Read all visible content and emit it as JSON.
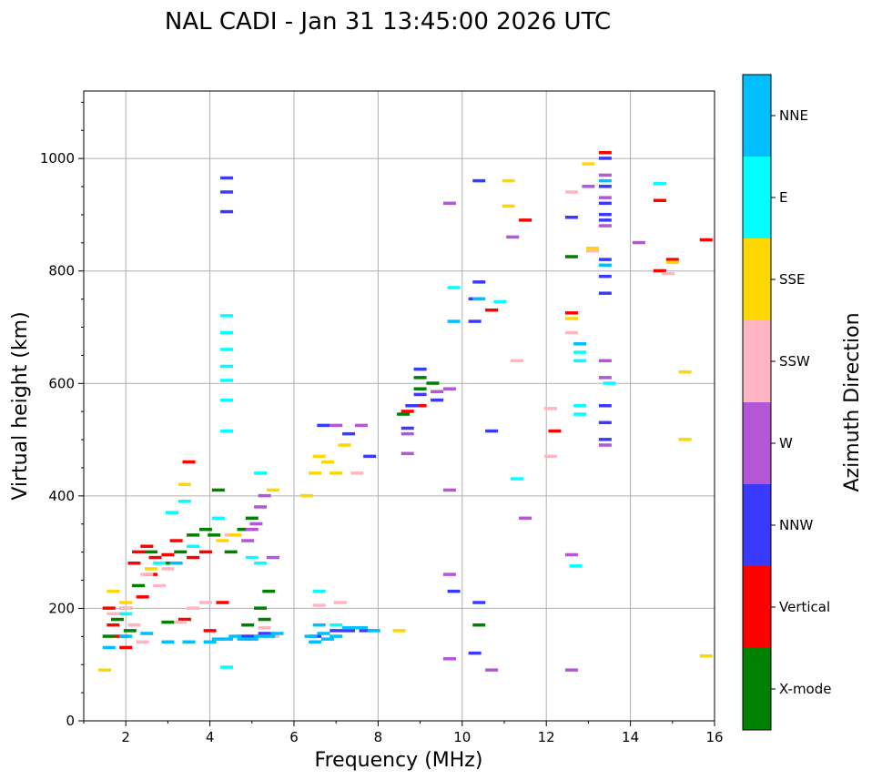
{
  "chart_data": {
    "type": "scatter",
    "title": "NAL CADI - Jan 31 13:45:00 2026 UTC",
    "xlabel": "Frequency (MHz)",
    "ylabel": "Virtual height (km)",
    "xlim": [
      1,
      16
    ],
    "ylim": [
      0,
      1120
    ],
    "xticks": [
      2,
      4,
      6,
      8,
      10,
      12,
      14,
      16
    ],
    "yticks": [
      0,
      200,
      400,
      600,
      800,
      1000
    ],
    "grid": true,
    "colorbar": {
      "label": "Azimuth Direction",
      "categories": [
        {
          "name": "X-mode",
          "color": "#008000"
        },
        {
          "name": "Vertical",
          "color": "#ff0000"
        },
        {
          "name": "NNW",
          "color": "#3a3aff"
        },
        {
          "name": "W",
          "color": "#b456d6"
        },
        {
          "name": "SSW",
          "color": "#ffb6c1"
        },
        {
          "name": "SSE",
          "color": "#ffd700"
        },
        {
          "name": "E",
          "color": "#00ffff"
        },
        {
          "name": "NNE",
          "color": "#00bfff"
        }
      ]
    },
    "series": [
      {
        "name": "X-mode",
        "points": [
          [
            1.6,
            150
          ],
          [
            1.8,
            180
          ],
          [
            2.0,
            200
          ],
          [
            2.3,
            240
          ],
          [
            2.6,
            300
          ],
          [
            2.9,
            280
          ],
          [
            3.3,
            300
          ],
          [
            3.6,
            330
          ],
          [
            3.9,
            340
          ],
          [
            4.1,
            330
          ],
          [
            4.2,
            410
          ],
          [
            4.5,
            300
          ],
          [
            4.8,
            340
          ],
          [
            5.0,
            360
          ],
          [
            5.2,
            200
          ],
          [
            5.4,
            230
          ],
          [
            5.3,
            180
          ],
          [
            4.9,
            170
          ],
          [
            8.6,
            545
          ],
          [
            9.0,
            590
          ],
          [
            9.0,
            610
          ],
          [
            9.3,
            600
          ],
          [
            10.4,
            170
          ],
          [
            12.6,
            825
          ],
          [
            2.1,
            160
          ],
          [
            3.0,
            175
          ]
        ]
      },
      {
        "name": "Vertical",
        "points": [
          [
            1.6,
            200
          ],
          [
            1.7,
            170
          ],
          [
            1.9,
            150
          ],
          [
            2.0,
            130
          ],
          [
            2.2,
            280
          ],
          [
            2.3,
            300
          ],
          [
            2.5,
            310
          ],
          [
            2.7,
            290
          ],
          [
            3.0,
            295
          ],
          [
            3.2,
            320
          ],
          [
            3.5,
            460
          ],
          [
            3.6,
            290
          ],
          [
            3.9,
            300
          ],
          [
            2.6,
            260
          ],
          [
            3.4,
            180
          ],
          [
            4.0,
            160
          ],
          [
            4.3,
            210
          ],
          [
            8.7,
            550
          ],
          [
            9.0,
            560
          ],
          [
            10.7,
            730
          ],
          [
            11.5,
            890
          ],
          [
            12.2,
            515
          ],
          [
            12.6,
            725
          ],
          [
            13.4,
            1010
          ],
          [
            14.7,
            925
          ],
          [
            14.7,
            800
          ],
          [
            15.0,
            820
          ],
          [
            15.8,
            855
          ],
          [
            2.4,
            220
          ]
        ]
      },
      {
        "name": "NNW",
        "points": [
          [
            4.4,
            940
          ],
          [
            4.4,
            965
          ],
          [
            4.4,
            905
          ],
          [
            4.8,
            150
          ],
          [
            5.0,
            150
          ],
          [
            5.3,
            155
          ],
          [
            6.5,
            150
          ],
          [
            7.0,
            160
          ],
          [
            7.3,
            160
          ],
          [
            7.7,
            160
          ],
          [
            8.7,
            520
          ],
          [
            8.8,
            560
          ],
          [
            9.0,
            580
          ],
          [
            9.0,
            625
          ],
          [
            9.4,
            570
          ],
          [
            9.8,
            230
          ],
          [
            10.3,
            710
          ],
          [
            10.3,
            750
          ],
          [
            10.4,
            960
          ],
          [
            10.4,
            780
          ],
          [
            10.4,
            210
          ],
          [
            10.3,
            120
          ],
          [
            10.7,
            515
          ],
          [
            12.6,
            895
          ],
          [
            13.4,
            500
          ],
          [
            13.4,
            530
          ],
          [
            13.4,
            560
          ],
          [
            13.4,
            760
          ],
          [
            13.4,
            790
          ],
          [
            13.4,
            820
          ],
          [
            13.4,
            900
          ],
          [
            13.4,
            920
          ],
          [
            13.4,
            950
          ],
          [
            13.4,
            1000
          ],
          [
            13.4,
            890
          ],
          [
            7.8,
            470
          ],
          [
            6.7,
            525
          ],
          [
            7.3,
            510
          ]
        ]
      },
      {
        "name": "W",
        "points": [
          [
            5.1,
            350
          ],
          [
            5.2,
            380
          ],
          [
            5.3,
            400
          ],
          [
            5.0,
            340
          ],
          [
            4.9,
            320
          ],
          [
            5.5,
            290
          ],
          [
            8.7,
            475
          ],
          [
            8.7,
            510
          ],
          [
            9.4,
            585
          ],
          [
            9.7,
            590
          ],
          [
            9.7,
            410
          ],
          [
            9.7,
            920
          ],
          [
            9.7,
            260
          ],
          [
            9.7,
            110
          ],
          [
            10.7,
            90
          ],
          [
            11.2,
            860
          ],
          [
            11.5,
            360
          ],
          [
            12.6,
            295
          ],
          [
            12.6,
            90
          ],
          [
            13.0,
            950
          ],
          [
            13.4,
            490
          ],
          [
            13.4,
            610
          ],
          [
            13.4,
            640
          ],
          [
            13.4,
            880
          ],
          [
            13.4,
            930
          ],
          [
            13.4,
            970
          ],
          [
            14.2,
            850
          ],
          [
            7.0,
            525
          ],
          [
            7.6,
            525
          ]
        ]
      },
      {
        "name": "SSW",
        "points": [
          [
            1.7,
            190
          ],
          [
            2.0,
            200
          ],
          [
            2.2,
            170
          ],
          [
            2.5,
            260
          ],
          [
            2.8,
            240
          ],
          [
            3.0,
            270
          ],
          [
            3.3,
            175
          ],
          [
            3.6,
            200
          ],
          [
            4.5,
            330
          ],
          [
            5.3,
            165
          ],
          [
            5.5,
            150
          ],
          [
            6.6,
            205
          ],
          [
            7.1,
            210
          ],
          [
            7.5,
            440
          ],
          [
            11.3,
            640
          ],
          [
            12.1,
            555
          ],
          [
            12.1,
            470
          ],
          [
            12.6,
            940
          ],
          [
            12.6,
            690
          ],
          [
            13.1,
            835
          ],
          [
            14.9,
            795
          ],
          [
            2.4,
            140
          ],
          [
            3.9,
            210
          ]
        ]
      },
      {
        "name": "SSE",
        "points": [
          [
            1.5,
            90
          ],
          [
            1.7,
            230
          ],
          [
            2.0,
            210
          ],
          [
            3.2,
            280
          ],
          [
            3.4,
            420
          ],
          [
            4.3,
            320
          ],
          [
            4.6,
            330
          ],
          [
            5.5,
            410
          ],
          [
            6.3,
            400
          ],
          [
            6.6,
            470
          ],
          [
            6.5,
            440
          ],
          [
            6.8,
            460
          ],
          [
            7.0,
            440
          ],
          [
            7.2,
            490
          ],
          [
            8.5,
            160
          ],
          [
            11.1,
            960
          ],
          [
            11.1,
            915
          ],
          [
            12.6,
            715
          ],
          [
            13.0,
            990
          ],
          [
            13.1,
            840
          ],
          [
            15.0,
            815
          ],
          [
            15.3,
            620
          ],
          [
            15.3,
            500
          ],
          [
            15.8,
            115
          ],
          [
            2.6,
            270
          ]
        ]
      },
      {
        "name": "E",
        "points": [
          [
            2.0,
            190
          ],
          [
            2.8,
            280
          ],
          [
            3.1,
            370
          ],
          [
            3.4,
            390
          ],
          [
            3.6,
            310
          ],
          [
            4.4,
            720
          ],
          [
            4.4,
            690
          ],
          [
            4.4,
            660
          ],
          [
            4.4,
            630
          ],
          [
            4.4,
            605
          ],
          [
            4.4,
            570
          ],
          [
            4.4,
            515
          ],
          [
            4.4,
            95
          ],
          [
            5.0,
            290
          ],
          [
            5.2,
            280
          ],
          [
            5.2,
            440
          ],
          [
            6.6,
            230
          ],
          [
            7.0,
            170
          ],
          [
            9.8,
            770
          ],
          [
            10.9,
            745
          ],
          [
            11.3,
            430
          ],
          [
            12.7,
            275
          ],
          [
            12.8,
            640
          ],
          [
            12.8,
            655
          ],
          [
            12.8,
            545
          ],
          [
            12.8,
            560
          ],
          [
            14.7,
            955
          ],
          [
            13.5,
            600
          ],
          [
            4.2,
            360
          ]
        ]
      },
      {
        "name": "NNE",
        "points": [
          [
            1.6,
            130
          ],
          [
            2.0,
            150
          ],
          [
            2.5,
            155
          ],
          [
            3.0,
            140
          ],
          [
            3.5,
            140
          ],
          [
            4.0,
            140
          ],
          [
            4.2,
            145
          ],
          [
            4.4,
            145
          ],
          [
            4.6,
            150
          ],
          [
            4.8,
            145
          ],
          [
            5.0,
            145
          ],
          [
            5.2,
            150
          ],
          [
            5.4,
            150
          ],
          [
            6.4,
            150
          ],
          [
            6.5,
            140
          ],
          [
            6.6,
            170
          ],
          [
            6.8,
            145
          ],
          [
            6.7,
            155
          ],
          [
            7.0,
            150
          ],
          [
            7.3,
            165
          ],
          [
            7.6,
            165
          ],
          [
            7.9,
            160
          ],
          [
            9.8,
            710
          ],
          [
            10.4,
            750
          ],
          [
            12.8,
            670
          ],
          [
            13.4,
            810
          ],
          [
            13.4,
            960
          ],
          [
            3.2,
            280
          ],
          [
            5.6,
            155
          ]
        ]
      }
    ]
  }
}
